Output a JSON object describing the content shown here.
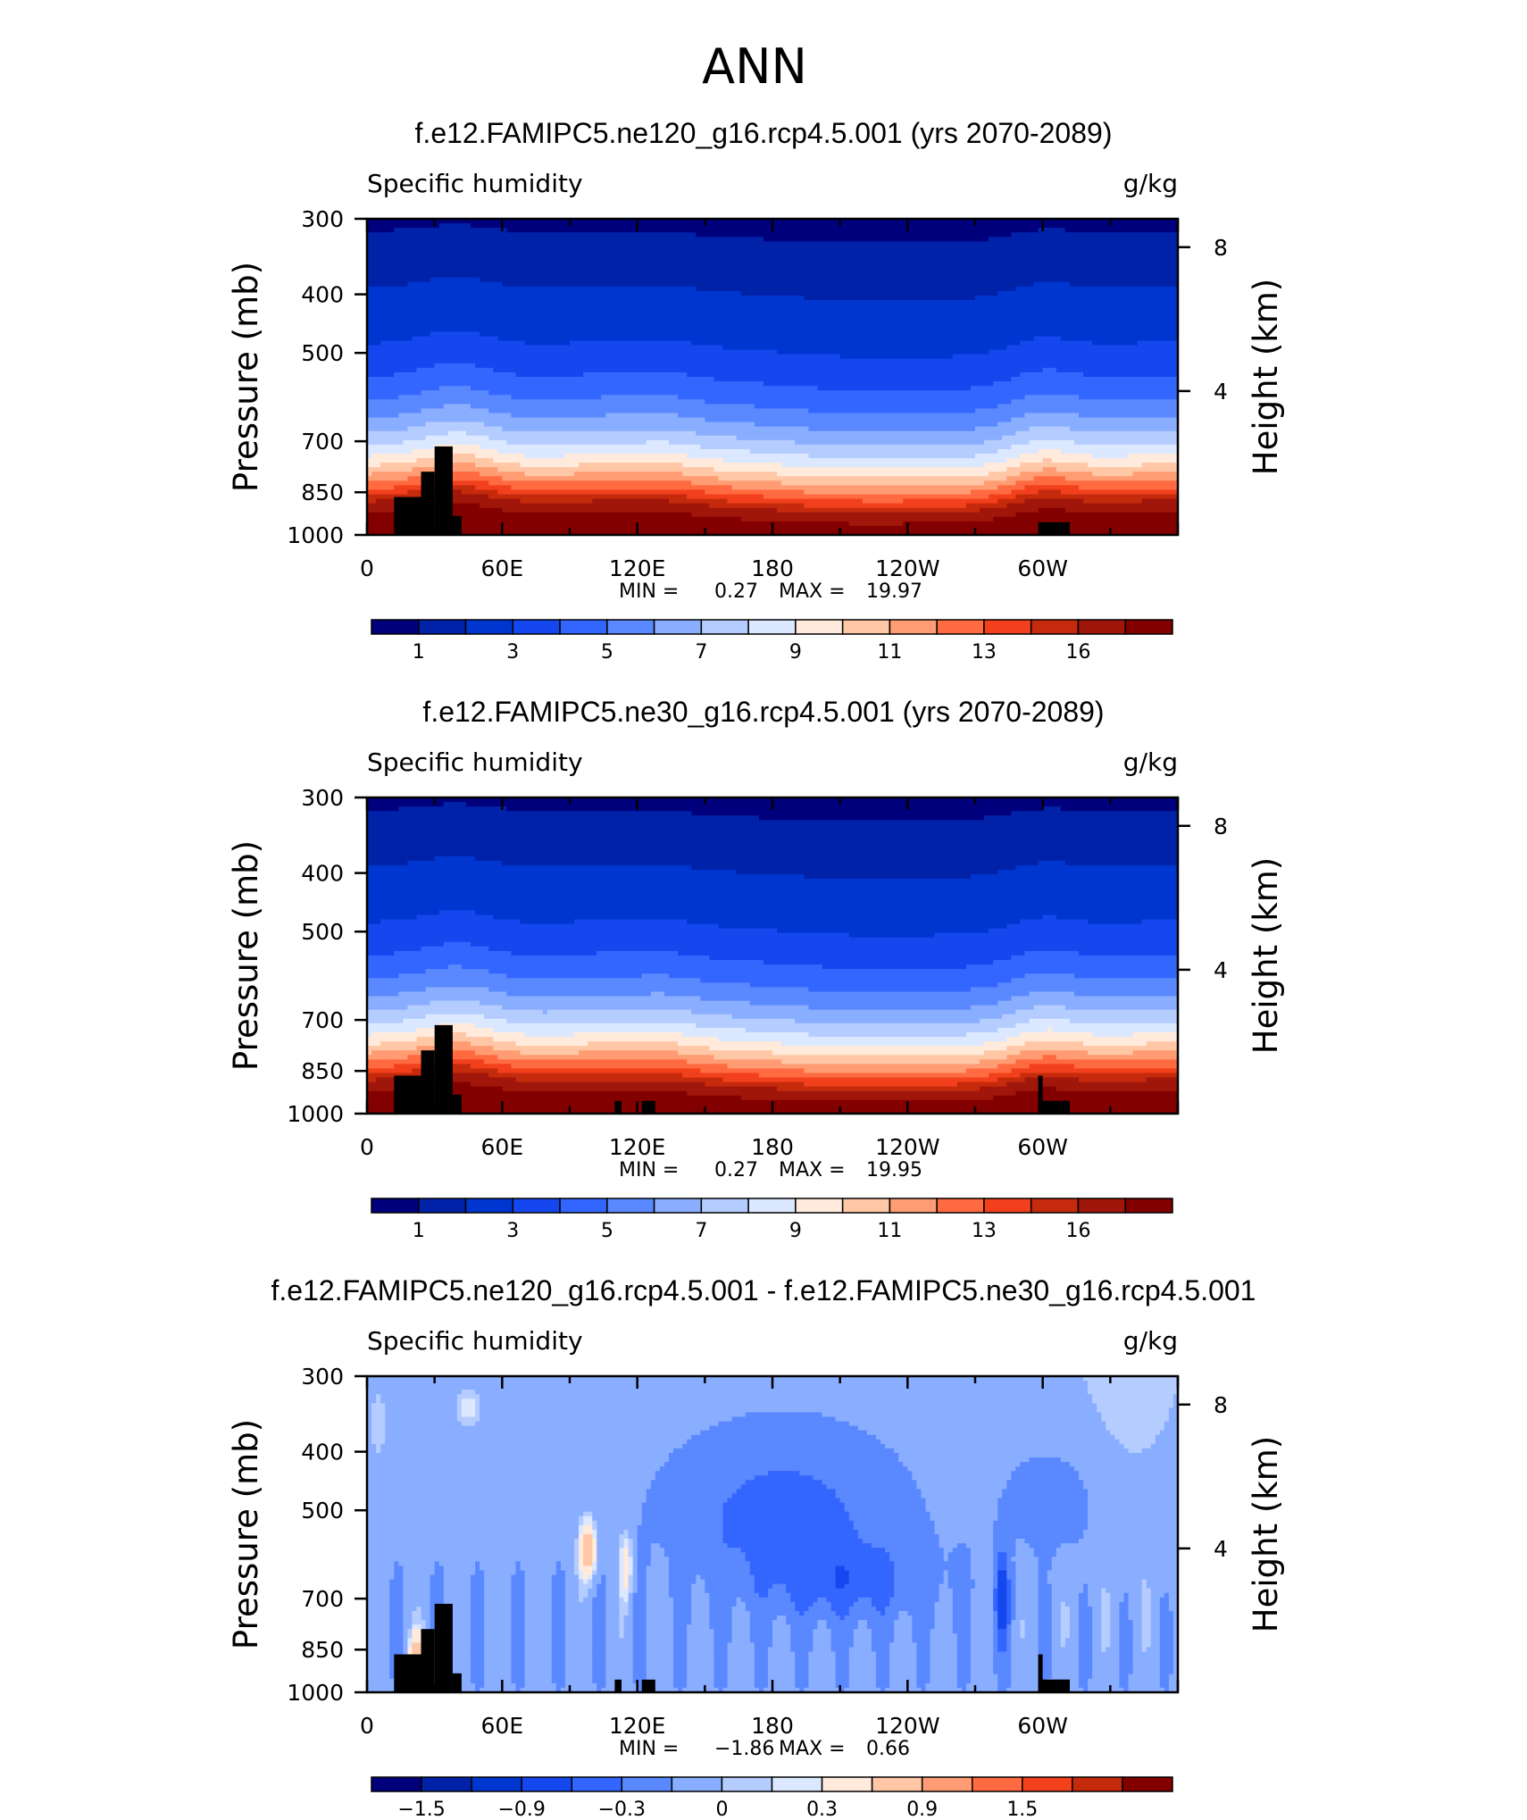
{
  "figure_title": "ANN",
  "chart_data": [
    {
      "type": "heatmap",
      "title": "f.e12.FAMIPC5.ne120_g16.rcp4.5.001 (yrs 2070-2089)",
      "left_label": "Specific humidity",
      "right_label": "g/kg",
      "ylabel": "Pressure (mb)",
      "ylabel_right": "Height (km)",
      "x_ticks": [
        "0",
        "60E",
        "120E",
        "180",
        "120W",
        "60W"
      ],
      "y_ticks": [
        "300",
        "400",
        "500",
        "700",
        "850",
        "1000"
      ],
      "y_ticks_right": [
        "8",
        "4"
      ],
      "ylim": [
        1000,
        300
      ],
      "xlim": [
        0,
        360
      ],
      "stats": {
        "min_label": "MIN =",
        "min": "0.27",
        "max_label": "MAX =",
        "max": "19.97"
      },
      "colorbar": {
        "levels": [
          0.5,
          1,
          2,
          3,
          4,
          5,
          6,
          7,
          8,
          9,
          10,
          11,
          12,
          13,
          14,
          16
        ],
        "labels": [
          "1",
          "3",
          "5",
          "7",
          "9",
          "11",
          "13",
          "16"
        ],
        "colors": [
          "#00007d",
          "#0022a8",
          "#0036d0",
          "#1448ee",
          "#3366ff",
          "#5a88ff",
          "#8aaeff",
          "#b5ccff",
          "#dbe8ff",
          "#ffeadb",
          "#ffc7a6",
          "#ff9c73",
          "#ff6a40",
          "#f2401c",
          "#c62a0c",
          "#a0160a",
          "#820000"
        ]
      },
      "surface_mask": [
        [
          12,
          24,
          930
        ],
        [
          24,
          30,
          900
        ],
        [
          30,
          38,
          880
        ],
        [
          38,
          42,
          930
        ],
        [
          474,
          490,
          975
        ]
      ]
    },
    {
      "type": "heatmap",
      "title": "f.e12.FAMIPC5.ne30_g16.rcp4.5.001 (yrs 2070-2089)",
      "left_label": "Specific humidity",
      "right_label": "g/kg",
      "ylabel": "Pressure (mb)",
      "ylabel_right": "Height (km)",
      "x_ticks": [
        "0",
        "60E",
        "120E",
        "180",
        "120W",
        "60W"
      ],
      "y_ticks": [
        "300",
        "400",
        "500",
        "700",
        "850",
        "1000"
      ],
      "y_ticks_right": [
        "8",
        "4"
      ],
      "ylim": [
        1000,
        300
      ],
      "xlim": [
        0,
        360
      ],
      "stats": {
        "min_label": "MIN =",
        "min": "0.27",
        "max_label": "MAX =",
        "max": "19.95"
      },
      "colorbar": {
        "levels": [
          0.5,
          1,
          2,
          3,
          4,
          5,
          6,
          7,
          8,
          9,
          10,
          11,
          12,
          13,
          14,
          16
        ],
        "labels": [
          "1",
          "3",
          "5",
          "7",
          "9",
          "11",
          "13",
          "16"
        ],
        "colors": [
          "#00007d",
          "#0022a8",
          "#0036d0",
          "#1448ee",
          "#3366ff",
          "#5a88ff",
          "#8aaeff",
          "#b5ccff",
          "#dbe8ff",
          "#ffeadb",
          "#ffc7a6",
          "#ff9c73",
          "#ff6a40",
          "#f2401c",
          "#c62a0c",
          "#a0160a",
          "#820000"
        ]
      }
    },
    {
      "type": "heatmap",
      "title": "f.e12.FAMIPC5.ne120_g16.rcp4.5.001 - f.e12.FAMIPC5.ne30_g16.rcp4.5.001",
      "left_label": "Specific humidity",
      "right_label": "g/kg",
      "ylabel": "Pressure (mb)",
      "ylabel_right": "Height (km)",
      "x_ticks": [
        "0",
        "60E",
        "120E",
        "180",
        "120W",
        "60W"
      ],
      "y_ticks": [
        "300",
        "400",
        "500",
        "700",
        "850",
        "1000"
      ],
      "y_ticks_right": [
        "8",
        "4"
      ],
      "ylim": [
        1000,
        300
      ],
      "xlim": [
        0,
        360
      ],
      "stats": {
        "min_label": "MIN =",
        "min": "−1.86",
        "max_label": "MAX =",
        "max": "0.66"
      },
      "colorbar": {
        "levels": [
          -1.8,
          -1.5,
          -1.2,
          -0.9,
          -0.6,
          -0.3,
          -0.1,
          0,
          0.1,
          0.3,
          0.6,
          0.9,
          1.2,
          1.5,
          1.8
        ],
        "labels": [
          "−1.5",
          "−0.9",
          "−0.3",
          "0",
          "0.3",
          "0.9",
          "1.5"
        ],
        "colors": [
          "#00007d",
          "#0022a8",
          "#0036d0",
          "#1448ee",
          "#3366ff",
          "#5a88ff",
          "#8aaeff",
          "#b5ccff",
          "#dbe8ff",
          "#ffeadb",
          "#ffc7a6",
          "#ff9c73",
          "#ff6a40",
          "#f2401c",
          "#c62a0c",
          "#820000"
        ]
      }
    }
  ]
}
